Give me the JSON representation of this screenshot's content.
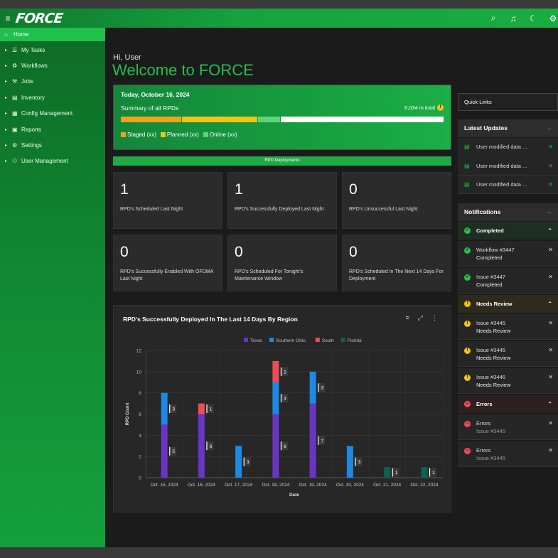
{
  "app": {
    "logo": "FORCE"
  },
  "topbar": {
    "icons": [
      "search-icon",
      "bell-icon",
      "moon-icon",
      "settings-icon"
    ]
  },
  "sidebar": {
    "home_label": "Home",
    "items": [
      {
        "label": "My Tasks",
        "icon": "tasks-icon"
      },
      {
        "label": "Workflows",
        "icon": "workflow-icon"
      },
      {
        "label": "Jobs",
        "icon": "jobs-icon"
      },
      {
        "label": "Inventory",
        "icon": "inventory-icon"
      },
      {
        "label": "Config Management",
        "icon": "config-icon"
      },
      {
        "label": "Reports",
        "icon": "reports-icon"
      },
      {
        "label": "Settings",
        "icon": "settings-icon"
      },
      {
        "label": "User Management",
        "icon": "users-icon"
      }
    ]
  },
  "greeting": {
    "hi": "Hi, User",
    "welcome": "Welcome to FORCE"
  },
  "summary": {
    "date": "Today, October 16, 2024",
    "label": "Summary of all RPDs",
    "total": "6,034 in total",
    "warn_glyph": "!",
    "segments": [
      {
        "name": "Staged",
        "fraction": 0.19,
        "color": "#f0a21e"
      },
      {
        "name": "Planned",
        "fraction": 0.235,
        "color": "#f3c316"
      },
      {
        "name": "Online",
        "fraction": 0.07,
        "color": "#5fd37a"
      },
      {
        "name": "Remaining",
        "fraction": 0.505,
        "color": "#ffffff"
      }
    ],
    "legend": [
      {
        "label": "Staged (xx)",
        "color": "#f0a21e"
      },
      {
        "label": "Planned (xx)",
        "color": "#f3c316"
      },
      {
        "label": "Online (xx)",
        "color": "#5fd37a"
      }
    ]
  },
  "deployments": {
    "title": "RPD Deployments",
    "cards": [
      {
        "value": "1",
        "label": "RPD's Scheduled Last Night"
      },
      {
        "value": "1",
        "label": "RPD's Successfully Deployed Last Night"
      },
      {
        "value": "0",
        "label": "RPD's Unsuccessful Last Night"
      },
      {
        "value": "0",
        "label": "RPD's Successfully Enabled With OFDMA Last Night"
      },
      {
        "value": "0",
        "label": "RPD's Scheduled For Tonight's Maintenance Window"
      },
      {
        "value": "0",
        "label": "RPD's Scheduled In The Next 14 Days For Deployment"
      }
    ]
  },
  "chart_data": {
    "type": "bar",
    "stacked": true,
    "title": "RPD's Successfully Deployed In The Last 14 Days By Region",
    "xlabel": "Date",
    "ylabel": "RPD Count",
    "ylim": [
      0,
      12
    ],
    "yticks": [
      0,
      2,
      4,
      6,
      8,
      10,
      12
    ],
    "grid": true,
    "legend_position": "top-center",
    "categories": [
      "Oct. 15, 2024",
      "Oct. 16, 2024",
      "Oct. 17, 2024",
      "Oct. 18, 2024",
      "Oct. 19, 2024",
      "Oct. 20, 2024",
      "Oct. 21, 2024",
      "Oct. 22, 2024"
    ],
    "series": [
      {
        "name": "Texas",
        "color": "#6a35c2",
        "values": [
          5,
          6,
          0,
          6,
          7,
          0,
          0,
          0
        ]
      },
      {
        "name": "Southern Ohio",
        "color": "#1e88e5",
        "values": [
          3,
          0,
          3,
          3,
          3,
          3,
          0,
          0
        ]
      },
      {
        "name": "South",
        "color": "#ef4a5a",
        "values": [
          0,
          1,
          0,
          2,
          0,
          0,
          0,
          0
        ]
      },
      {
        "name": "Florida",
        "color": "#0f5f55",
        "values": [
          0,
          0,
          0,
          0,
          0,
          0,
          1,
          1
        ]
      }
    ]
  },
  "chart_tools": {
    "menu": "≡",
    "expand": "⤢",
    "more": "⋮"
  },
  "quick_links": {
    "label": "Quick Links"
  },
  "latest_updates": {
    "title": "Latest Updates",
    "arrow": "→",
    "items": [
      {
        "text": "User modified data ..."
      },
      {
        "text": "User modified data ..."
      },
      {
        "text": "User modified data ..."
      }
    ]
  },
  "notifications": {
    "title": "Notifications",
    "arrow": "→",
    "groups": [
      {
        "title": "Completed",
        "color": "#2bbf4e",
        "glyph": "✓",
        "items": [
          {
            "title": "Workflow #3447",
            "sub": "Completed"
          },
          {
            "title": "Issue #3447",
            "sub": "Completed"
          }
        ]
      },
      {
        "title": "Needs Review",
        "color": "#f3c316",
        "glyph": "!",
        "items": [
          {
            "title": "Issue #3445",
            "sub": "Needs Review"
          },
          {
            "title": "Issue #3445",
            "sub": "Needs Review"
          },
          {
            "title": "Issue #3446",
            "sub": "Needs Review"
          }
        ]
      },
      {
        "title": "Errors",
        "color": "#ef4a5a",
        "glyph": "−",
        "items": [
          {
            "title": "Errors",
            "sub": "Issue #3445"
          },
          {
            "title": "Errors",
            "sub": "Issue #3445"
          }
        ]
      }
    ]
  }
}
